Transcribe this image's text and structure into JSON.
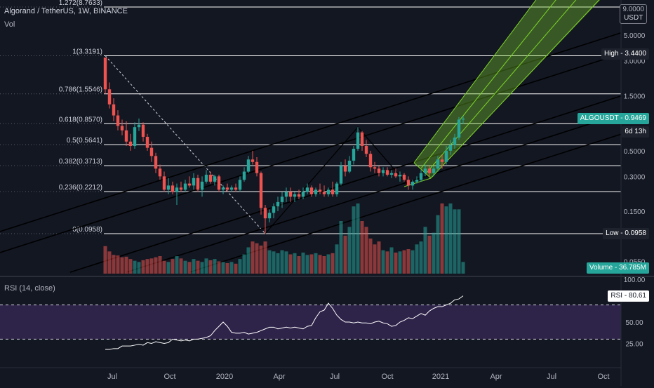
{
  "header": {
    "symbol": "Algorand / TetherUS",
    "interval": "1W",
    "exchange": "BINANCE",
    "volume_label": "Vol",
    "rsi_label": "RSI (14, close)",
    "currency": "USDT"
  },
  "price_axis": {
    "scale": "log",
    "top_label": "9.0000",
    "ticks": [
      "5.0000",
      "3.0000",
      "1.5000",
      "0.5000",
      "0.3000",
      "0.1500",
      "0.0550"
    ]
  },
  "rsi_axis": {
    "ticks": [
      "100.00",
      "50.00",
      "25.00"
    ],
    "bands": [
      70,
      30
    ]
  },
  "time_axis": {
    "labels": [
      "Jul",
      "Oct",
      "2020",
      "Apr",
      "Jul",
      "Oct",
      "2021",
      "Apr",
      "Jul",
      "Oct"
    ]
  },
  "fibonacci": {
    "levels": [
      {
        "label": "1.272(8.7633)",
        "price": 8.7633
      },
      {
        "label": "1(3.3191)",
        "price": 3.3191
      },
      {
        "label": "0.786(1.5546)",
        "price": 1.5546
      },
      {
        "label": "0.618(0.8570)",
        "price": 0.857
      },
      {
        "label": "0.5(0.5641)",
        "price": 0.5641
      },
      {
        "label": "0.382(0.3713)",
        "price": 0.3713
      },
      {
        "label": "0.236(0.2212)",
        "price": 0.2212
      },
      {
        "label": "0(0.0958)",
        "price": 0.0958
      }
    ]
  },
  "price_tags": {
    "high": "High - 3.4400",
    "last": "ALGOUSDT - 0.9469",
    "countdown": "6d 13h",
    "low": "Low - 0.0958",
    "volume": "Volume - 36.785M",
    "rsi": "RSI - 80.61"
  },
  "colors": {
    "background": "#131722",
    "up": "#26a69a",
    "down": "#ef5350",
    "channel": "#7fd42a",
    "rsi_band": "#3a2a5a",
    "rsi_line": "#ffffff"
  },
  "chart_data": {
    "type": "candlestick",
    "symbol": "ALGOUSDT",
    "interval": "1W",
    "price_scale": "log",
    "price_range": [
      0.042,
      9.8
    ],
    "candles": [
      [
        3.2,
        3.2,
        1.55,
        1.7
      ],
      [
        1.7,
        1.95,
        1.16,
        1.26
      ],
      [
        1.26,
        1.42,
        0.9,
        1.01
      ],
      [
        1.01,
        1.12,
        0.75,
        0.82
      ],
      [
        0.82,
        0.93,
        0.68,
        0.75
      ],
      [
        0.75,
        0.9,
        0.55,
        0.6
      ],
      [
        0.6,
        0.7,
        0.5,
        0.55
      ],
      [
        0.55,
        0.88,
        0.52,
        0.8
      ],
      [
        0.8,
        0.95,
        0.74,
        0.84
      ],
      [
        0.84,
        0.88,
        0.6,
        0.66
      ],
      [
        0.66,
        0.7,
        0.5,
        0.53
      ],
      [
        0.53,
        0.6,
        0.4,
        0.45
      ],
      [
        0.45,
        0.48,
        0.32,
        0.35
      ],
      [
        0.35,
        0.38,
        0.28,
        0.3
      ],
      [
        0.3,
        0.33,
        0.22,
        0.23
      ],
      [
        0.23,
        0.29,
        0.21,
        0.25
      ],
      [
        0.25,
        0.27,
        0.21,
        0.22
      ],
      [
        0.22,
        0.26,
        0.17,
        0.24
      ],
      [
        0.24,
        0.27,
        0.22,
        0.23
      ],
      [
        0.23,
        0.28,
        0.22,
        0.26
      ],
      [
        0.26,
        0.3,
        0.24,
        0.25
      ],
      [
        0.25,
        0.32,
        0.23,
        0.29
      ],
      [
        0.29,
        0.31,
        0.22,
        0.23
      ],
      [
        0.23,
        0.3,
        0.2,
        0.27
      ],
      [
        0.27,
        0.34,
        0.26,
        0.31
      ],
      [
        0.31,
        0.33,
        0.26,
        0.27
      ],
      [
        0.27,
        0.31,
        0.25,
        0.3
      ],
      [
        0.3,
        0.31,
        0.22,
        0.23
      ],
      [
        0.23,
        0.25,
        0.21,
        0.24
      ],
      [
        0.24,
        0.26,
        0.22,
        0.23
      ],
      [
        0.23,
        0.25,
        0.22,
        0.24
      ],
      [
        0.24,
        0.26,
        0.22,
        0.23
      ],
      [
        0.23,
        0.3,
        0.22,
        0.28
      ],
      [
        0.28,
        0.36,
        0.27,
        0.33
      ],
      [
        0.33,
        0.45,
        0.32,
        0.42
      ],
      [
        0.42,
        0.5,
        0.38,
        0.4
      ],
      [
        0.4,
        0.44,
        0.3,
        0.32
      ],
      [
        0.32,
        0.33,
        0.14,
        0.16
      ],
      [
        0.16,
        0.17,
        0.0958,
        0.13
      ],
      [
        0.13,
        0.155,
        0.12,
        0.145
      ],
      [
        0.145,
        0.175,
        0.13,
        0.165
      ],
      [
        0.165,
        0.2,
        0.15,
        0.18
      ],
      [
        0.18,
        0.22,
        0.16,
        0.2
      ],
      [
        0.2,
        0.24,
        0.18,
        0.22
      ],
      [
        0.22,
        0.24,
        0.18,
        0.2
      ],
      [
        0.2,
        0.22,
        0.18,
        0.21
      ],
      [
        0.21,
        0.23,
        0.19,
        0.2
      ],
      [
        0.2,
        0.24,
        0.19,
        0.22
      ],
      [
        0.22,
        0.26,
        0.21,
        0.24
      ],
      [
        0.24,
        0.25,
        0.2,
        0.21
      ],
      [
        0.21,
        0.24,
        0.2,
        0.23
      ],
      [
        0.23,
        0.26,
        0.21,
        0.22
      ],
      [
        0.22,
        0.25,
        0.2,
        0.21
      ],
      [
        0.21,
        0.24,
        0.2,
        0.23
      ],
      [
        0.23,
        0.27,
        0.2,
        0.21
      ],
      [
        0.21,
        0.27,
        0.2,
        0.26
      ],
      [
        0.26,
        0.4,
        0.25,
        0.37
      ],
      [
        0.37,
        0.42,
        0.3,
        0.33
      ],
      [
        0.33,
        0.45,
        0.32,
        0.41
      ],
      [
        0.41,
        0.55,
        0.38,
        0.52
      ],
      [
        0.52,
        0.8,
        0.5,
        0.72
      ],
      [
        0.72,
        0.74,
        0.5,
        0.55
      ],
      [
        0.55,
        0.62,
        0.44,
        0.47
      ],
      [
        0.47,
        0.5,
        0.33,
        0.36
      ],
      [
        0.36,
        0.4,
        0.32,
        0.35
      ],
      [
        0.35,
        0.37,
        0.3,
        0.32
      ],
      [
        0.32,
        0.36,
        0.3,
        0.34
      ],
      [
        0.34,
        0.36,
        0.3,
        0.31
      ],
      [
        0.31,
        0.34,
        0.29,
        0.32
      ],
      [
        0.32,
        0.35,
        0.29,
        0.3
      ],
      [
        0.3,
        0.33,
        0.27,
        0.31
      ],
      [
        0.31,
        0.32,
        0.27,
        0.28
      ],
      [
        0.28,
        0.3,
        0.23,
        0.25
      ],
      [
        0.25,
        0.28,
        0.23,
        0.27
      ],
      [
        0.27,
        0.3,
        0.26,
        0.28
      ],
      [
        0.28,
        0.34,
        0.27,
        0.32
      ],
      [
        0.32,
        0.38,
        0.3,
        0.35
      ],
      [
        0.35,
        0.37,
        0.3,
        0.32
      ],
      [
        0.32,
        0.37,
        0.3,
        0.35
      ],
      [
        0.35,
        0.45,
        0.33,
        0.42
      ],
      [
        0.42,
        0.46,
        0.35,
        0.4
      ],
      [
        0.4,
        0.55,
        0.38,
        0.5
      ],
      [
        0.5,
        0.62,
        0.46,
        0.56
      ],
      [
        0.56,
        0.7,
        0.52,
        0.65
      ],
      [
        0.65,
        0.98,
        0.62,
        0.93
      ],
      [
        0.93,
        1.0,
        0.85,
        0.9469
      ]
    ],
    "volumes": [
      4.7,
      3.8,
      3.2,
      3.1,
      2.8,
      2.9,
      2.5,
      2.2,
      2.0,
      2.3,
      2.5,
      2.6,
      2.8,
      3.0,
      2.2,
      2.0,
      2.5,
      3.0,
      2.6,
      2.2,
      2.0,
      2.5,
      2.2,
      2.0,
      2.6,
      2.3,
      2.5,
      2.1,
      2.0,
      1.8,
      2.0,
      1.7,
      2.5,
      3.3,
      4.5,
      5.5,
      5.2,
      4.8,
      5.5,
      4.0,
      3.8,
      3.5,
      4.0,
      3.8,
      3.3,
      3.5,
      3.0,
      3.6,
      3.2,
      3.3,
      3.5,
      3.2,
      3.0,
      3.3,
      3.5,
      5.0,
      9.0,
      6.5,
      8.0,
      11.5,
      12.0,
      9.0,
      8.0,
      6.0,
      5.0,
      5.5,
      4.0,
      3.8,
      4.5,
      3.6,
      3.8,
      4.0,
      4.2,
      4.0,
      5.0,
      5.5,
      8.0,
      6.5,
      7.0,
      10.0,
      12.0,
      11.5,
      12.0,
      11.0,
      11.0,
      2.0
    ],
    "rsi": [
      18,
      18,
      19,
      19,
      22,
      22,
      22,
      23,
      24,
      23,
      26,
      25,
      27,
      26,
      25,
      26,
      30,
      29,
      28,
      29,
      28,
      30,
      30,
      31,
      32,
      34,
      40,
      45,
      50,
      45,
      38,
      37,
      37,
      38,
      36,
      37,
      38,
      40,
      42,
      44,
      44,
      42,
      43,
      44,
      43,
      44,
      43,
      42,
      45,
      46,
      55,
      62,
      64,
      72,
      66,
      58,
      53,
      50,
      50,
      49,
      50,
      49,
      49,
      48,
      50,
      51,
      49,
      48,
      45,
      46,
      50,
      52,
      55,
      54,
      57,
      60,
      58,
      63,
      66,
      68,
      68,
      70,
      72,
      76,
      77,
      80.61
    ],
    "rsi_range": [
      0,
      100
    ]
  }
}
